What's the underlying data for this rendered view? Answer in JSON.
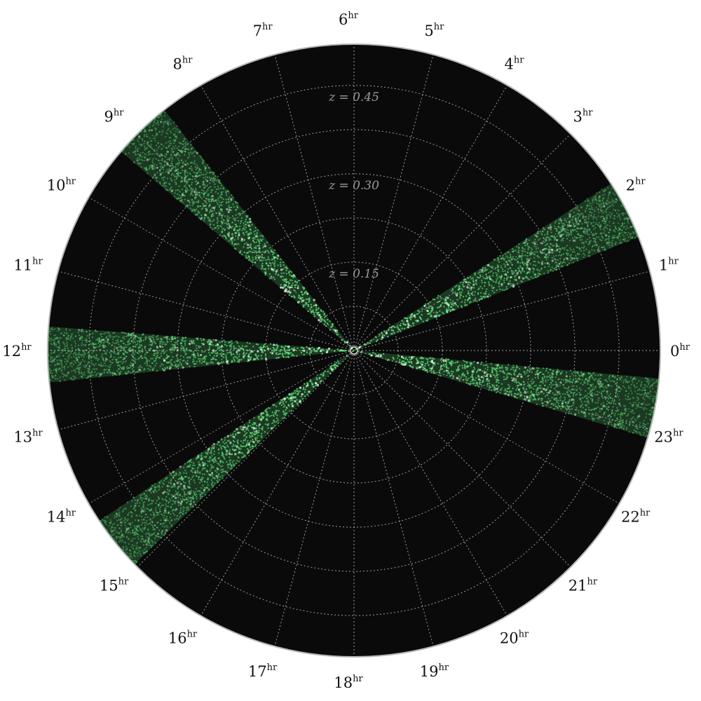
{
  "chart_data": {
    "type": "scatter",
    "projection": "polar",
    "angular_axis": {
      "unit_label": "hr",
      "ticks": [
        0,
        1,
        2,
        3,
        4,
        5,
        6,
        7,
        8,
        9,
        10,
        11,
        12,
        13,
        14,
        15,
        16,
        17,
        18,
        19,
        20,
        21,
        22,
        23
      ],
      "direction": "counterclockwise",
      "zero_at": "right"
    },
    "radial_axis": {
      "variable": "z",
      "range": [
        0,
        0.52
      ],
      "ticks": [
        0.15,
        0.3,
        0.45
      ],
      "tick_labels": [
        "z = 0.15",
        "z = 0.30",
        "z = 0.45"
      ]
    },
    "grid": true,
    "grid_style": "dotted",
    "background_color": "#0a0a0a",
    "point_color": "#5fe07a",
    "bright_color": "#e9ffe9",
    "wedges": [
      {
        "ra_start_hr": 1.45,
        "ra_end_hr": 2.2,
        "z_min": 0.0,
        "z_max": 0.52
      },
      {
        "ra_start_hr": 8.55,
        "ra_end_hr": 9.3,
        "z_min": 0.0,
        "z_max": 0.52
      },
      {
        "ra_start_hr": 11.7,
        "ra_end_hr": 12.4,
        "z_min": 0.0,
        "z_max": 0.52
      },
      {
        "ra_start_hr": 14.25,
        "ra_end_hr": 14.95,
        "z_min": 0.0,
        "z_max": 0.52
      },
      {
        "ra_start_hr": 22.9,
        "ra_end_hr": 23.65,
        "z_min": 0.0,
        "z_max": 0.52
      }
    ]
  }
}
